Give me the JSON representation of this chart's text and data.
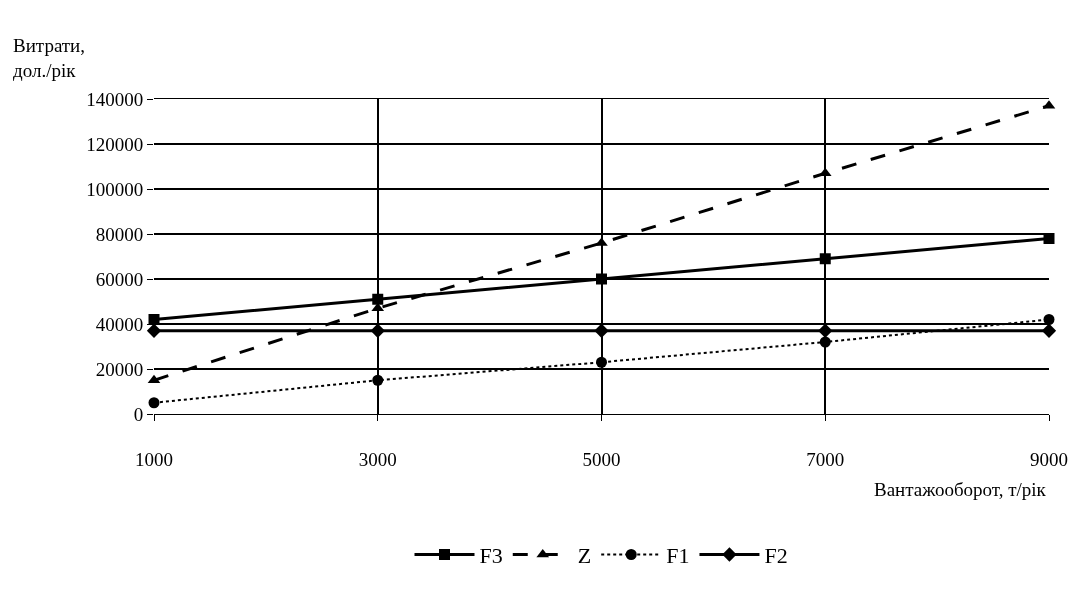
{
  "chart_data": {
    "type": "line",
    "ylabel": "Витрати,\nдол./рік",
    "xlabel": "Вантажооборот, т/рік",
    "x": [
      1000,
      3000,
      5000,
      7000,
      9000
    ],
    "xlim": [
      1000,
      9000
    ],
    "xticks": [
      1000,
      3000,
      5000,
      7000,
      9000
    ],
    "ylim": [
      0,
      140000
    ],
    "yticks": [
      0,
      20000,
      40000,
      60000,
      80000,
      100000,
      120000,
      140000
    ],
    "grid": true,
    "legend": "bottom",
    "series": [
      {
        "name": "F3",
        "color": "#000000",
        "marker": "square",
        "line_style": "solid",
        "values": [
          42000,
          51000,
          60000,
          69000,
          78000
        ]
      },
      {
        "name": "Z",
        "color": "#000000",
        "marker": "triangle",
        "line_style": "dashed",
        "values": [
          15000,
          47000,
          76000,
          107000,
          137000
        ]
      },
      {
        "name": "F1",
        "color": "#000000",
        "marker": "circle",
        "line_style": "dotted",
        "values": [
          5000,
          15000,
          23000,
          32000,
          42000
        ]
      },
      {
        "name": "F2",
        "color": "#000000",
        "marker": "diamond",
        "line_style": "solid",
        "values": [
          37000,
          37000,
          37000,
          37000,
          37000
        ]
      }
    ]
  }
}
